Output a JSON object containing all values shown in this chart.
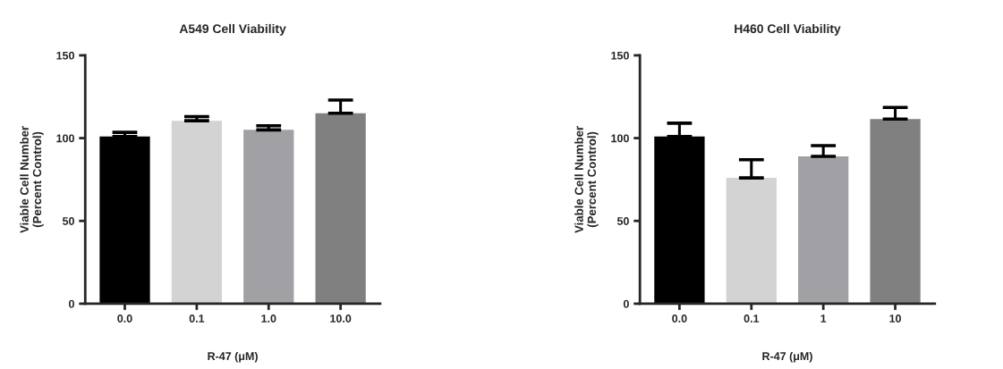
{
  "chart_data": [
    {
      "type": "bar",
      "title": "A549 Cell Viability",
      "xlabel": "R-47 (μM)",
      "ylabel": "Viable Cell Number\n(Percent Control)",
      "categories": [
        "0.0",
        "0.1",
        "1.0",
        "10.0"
      ],
      "values": [
        101,
        110.5,
        105,
        115
      ],
      "colors": [
        "#000000",
        "#d3d3d3",
        "#a1a0a5",
        "#808080"
      ],
      "errors": [
        [
          101,
          103.5
        ],
        [
          110.5,
          113
        ],
        [
          105,
          107.5
        ],
        [
          115,
          123
        ]
      ],
      "ylim": [
        0,
        150
      ],
      "yticks": [
        0,
        50,
        100,
        150
      ],
      "grid": false,
      "legend": false
    },
    {
      "type": "bar",
      "title": "H460 Cell Viability",
      "xlabel": "R-47 (μM)",
      "ylabel": "Viable Cell Number\n(Percent Control)",
      "categories": [
        "0.0",
        "0.1",
        "1",
        "10"
      ],
      "values": [
        101,
        76,
        89,
        111.5
      ],
      "colors": [
        "#000000",
        "#d3d3d3",
        "#a1a0a5",
        "#808080"
      ],
      "errors": [
        [
          101,
          109
        ],
        [
          76,
          87
        ],
        [
          89,
          95.5
        ],
        [
          111.5,
          118.5
        ]
      ],
      "ylim": [
        0,
        150
      ],
      "yticks": [
        0,
        50,
        100,
        150
      ],
      "grid": false,
      "legend": false
    }
  ]
}
